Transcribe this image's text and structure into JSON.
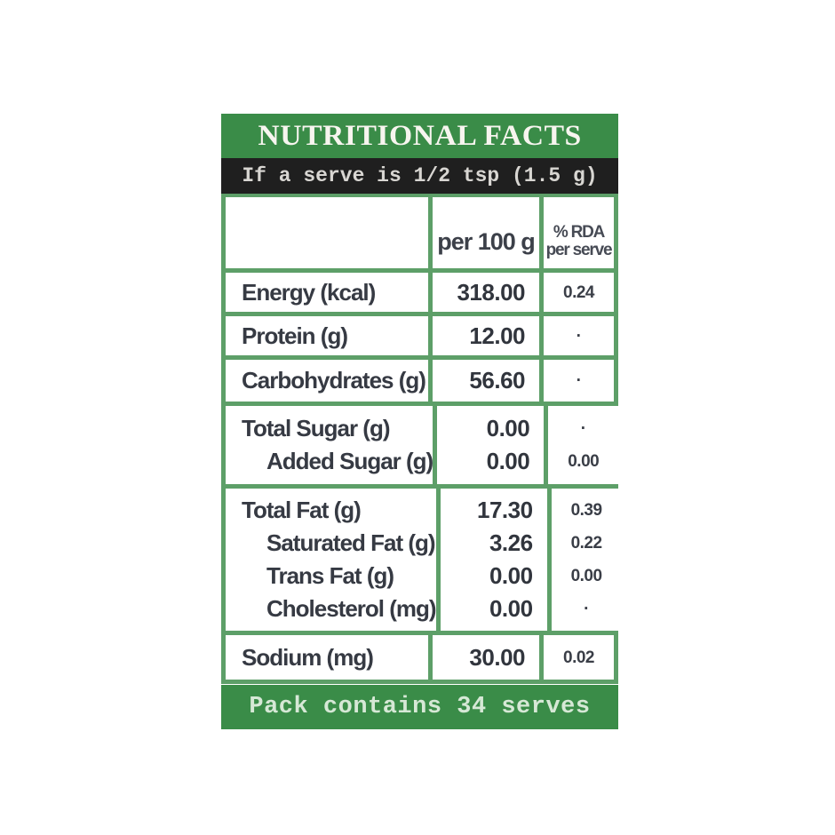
{
  "label": {
    "title": "NUTRITIONAL FACTS",
    "serve_note": "If a serve is 1/2 tsp (1.5 g)",
    "footer": "Pack contains 34 serves",
    "colors": {
      "header_green": "#3a8c48",
      "grid_green": "#5d9f68",
      "black_bar": "#1f1f1f",
      "text_dark": "#363a43"
    },
    "table": {
      "columns": {
        "col2": "per 100 g",
        "col3_line1": "% RDA",
        "col3_line2": "per serve"
      },
      "groups": [
        {
          "rows": [
            {
              "name": "Energy (kcal)",
              "per100": "318.00",
              "rda": "0.24",
              "indent": false
            }
          ]
        },
        {
          "rows": [
            {
              "name": "Protein (g)",
              "per100": "12.00",
              "rda": "·",
              "indent": false
            }
          ]
        },
        {
          "rows": [
            {
              "name": "Carbohydrates (g)",
              "per100": "56.60",
              "rda": "·",
              "indent": false
            }
          ]
        },
        {
          "rows": [
            {
              "name": "Total Sugar (g)",
              "per100": "0.00",
              "rda": "·",
              "indent": false
            },
            {
              "name": "Added Sugar (g)",
              "per100": "0.00",
              "rda": "0.00",
              "indent": true
            }
          ]
        },
        {
          "rows": [
            {
              "name": "Total Fat (g)",
              "per100": "17.30",
              "rda": "0.39",
              "indent": false
            },
            {
              "name": "Saturated Fat (g)",
              "per100": "3.26",
              "rda": "0.22",
              "indent": true
            },
            {
              "name": "Trans Fat (g)",
              "per100": "0.00",
              "rda": "0.00",
              "indent": true
            },
            {
              "name": "Cholesterol (mg)",
              "per100": "0.00",
              "rda": "·",
              "indent": true
            }
          ]
        },
        {
          "rows": [
            {
              "name": "Sodium (mg)",
              "per100": "30.00",
              "rda": "0.02",
              "indent": false
            }
          ]
        }
      ]
    }
  }
}
